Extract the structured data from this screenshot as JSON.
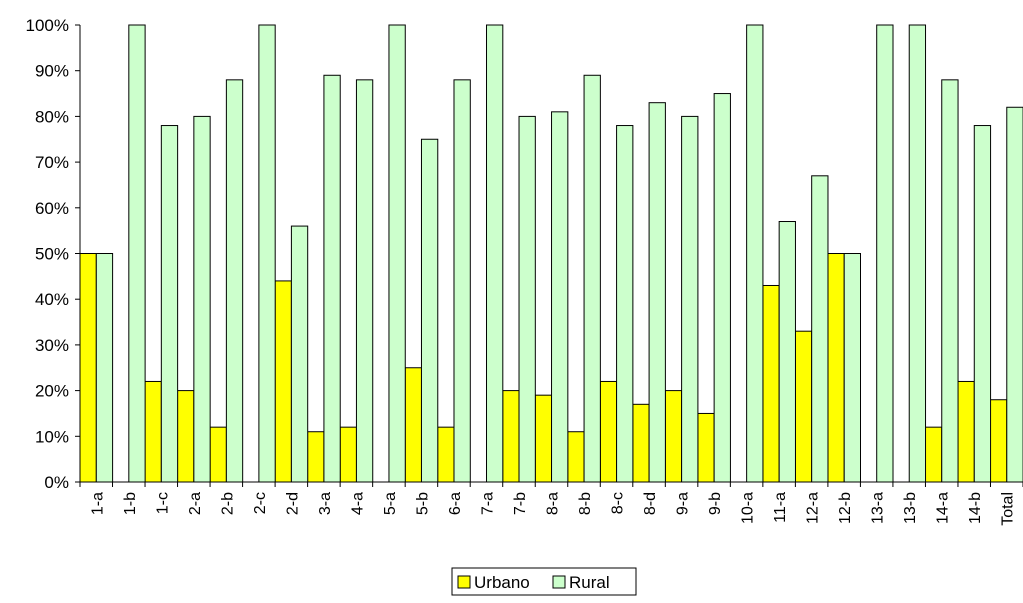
{
  "chart_data": {
    "type": "bar",
    "title": "",
    "xlabel": "",
    "ylabel": "",
    "ylim": [
      0,
      100
    ],
    "y_ticks": [
      "0%",
      "10%",
      "20%",
      "30%",
      "40%",
      "50%",
      "60%",
      "70%",
      "80%",
      "90%",
      "100%"
    ],
    "grid": false,
    "legend_position": "bottom-center",
    "categories": [
      "1-a",
      "1-b",
      "1-c",
      "2-a",
      "2-b",
      "2-c",
      "2-d",
      "3-a",
      "4-a",
      "5-a",
      "5-b",
      "6-a",
      "7-a",
      "7-b",
      "8-a",
      "8-b",
      "8-c",
      "8-d",
      "9-a",
      "9-b",
      "10-a",
      "11-a",
      "12-a",
      "12-b",
      "13-a",
      "13-b",
      "14-a",
      "14-b",
      "Total"
    ],
    "series": [
      {
        "name": "Urbano",
        "color": "#ffff00",
        "values": [
          50,
          0,
          22,
          20,
          12,
          0,
          44,
          11,
          12,
          0,
          25,
          12,
          0,
          20,
          19,
          11,
          22,
          17,
          20,
          15,
          0,
          43,
          33,
          50,
          0,
          0,
          12,
          22,
          18
        ]
      },
      {
        "name": "Rural",
        "color": "#ccffcc",
        "values": [
          50,
          100,
          78,
          80,
          88,
          100,
          56,
          89,
          88,
          100,
          75,
          88,
          100,
          80,
          81,
          89,
          78,
          83,
          80,
          85,
          100,
          57,
          67,
          50,
          100,
          100,
          88,
          78,
          82
        ]
      }
    ]
  }
}
